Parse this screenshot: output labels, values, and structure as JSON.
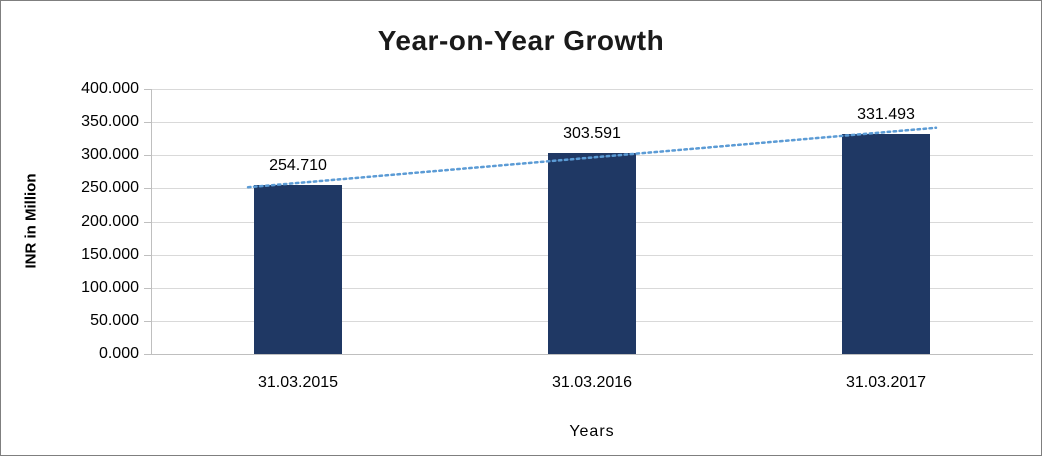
{
  "chart_data": {
    "type": "bar",
    "title": "Year-on-Year Growth",
    "xlabel": "Years",
    "ylabel": "INR in Million",
    "categories": [
      "31.03.2015",
      "31.03.2016",
      "31.03.2017"
    ],
    "values": [
      254.71,
      303.591,
      331.493
    ],
    "data_labels": [
      "254.710",
      "303.591",
      "331.493"
    ],
    "ylim": [
      0,
      400
    ],
    "ytick_step": 50,
    "ytick_labels": [
      "0.000",
      "50.000",
      "100.000",
      "150.000",
      "200.000",
      "250.000",
      "300.000",
      "350.000",
      "400.000"
    ],
    "grid": true,
    "legend": false,
    "trendline": true,
    "colors": {
      "bar": "#1F3864",
      "grid": "#D9D9D9",
      "axis": "#BFBFBF",
      "trend": "#5B9BD5",
      "text": "#000000"
    }
  }
}
